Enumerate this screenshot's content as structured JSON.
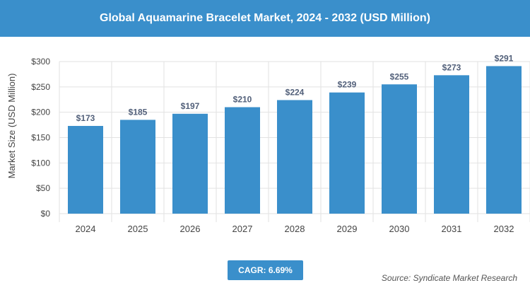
{
  "header": {
    "title": "Global Aquamarine Bracelet Market, 2024 - 2032 (USD Million)"
  },
  "chart_data": {
    "type": "bar",
    "title": "Global Aquamarine Bracelet Market, 2024 - 2032 (USD Million)",
    "xlabel": "",
    "ylabel": "Market Size (USD Million)",
    "categories": [
      "2024",
      "2025",
      "2026",
      "2027",
      "2028",
      "2029",
      "2030",
      "2031",
      "2032"
    ],
    "values": [
      173,
      185,
      197,
      210,
      224,
      239,
      255,
      273,
      291
    ],
    "data_labels": [
      "$173",
      "$185",
      "$197",
      "$210",
      "$224",
      "$239",
      "$255",
      "$273",
      "$291"
    ],
    "ylim": [
      0,
      300
    ],
    "yticks": [
      0,
      50,
      100,
      150,
      200,
      250,
      300
    ],
    "ytick_labels": [
      "$0",
      "$50",
      "$100",
      "$150",
      "$200",
      "$250",
      "$300"
    ],
    "grid": true,
    "legend": "none",
    "bar_color": "#3a8fcb"
  },
  "footer": {
    "cagr": "CAGR: 6.69%",
    "source": "Source: Syndicate Market Research"
  },
  "colors": {
    "accent": "#3a8fcb",
    "grid": "#e2e2e2",
    "axis_text": "#444444",
    "label_text": "#52607a"
  }
}
